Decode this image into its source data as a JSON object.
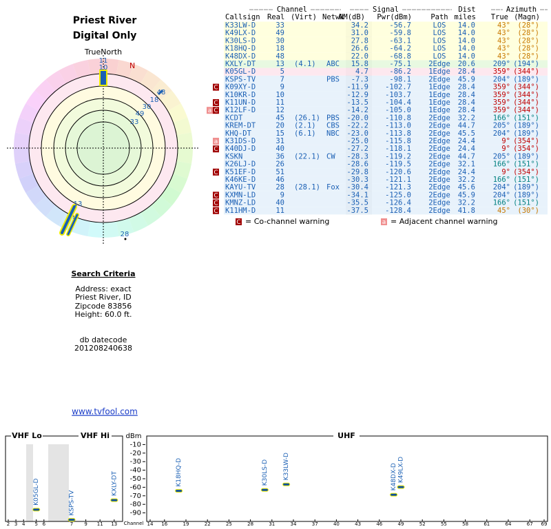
{
  "header": {
    "title": "Priest River",
    "subtitle": "Digital Only"
  },
  "polar": {
    "north": "TrueNorth",
    "n": "N"
  },
  "criteria": {
    "heading": "Search Criteria",
    "lines": [
      "Address: exact",
      "Priest River, ID",
      "Zipcode 83856",
      "Height: 60.0 ft."
    ],
    "db_label": "db datecode",
    "db_code": "201208240638",
    "link": "www.tvfool.com"
  },
  "table": {
    "groups": [
      "Channel",
      "Signal",
      "Dist",
      "Azimuth"
    ],
    "columns": [
      "Callsign",
      "Real",
      "(Virt)",
      "Netwk",
      "NM(dB)",
      "Pwr(dBm)",
      "Path",
      "miles",
      "True",
      "(Magn)"
    ],
    "rows": [
      {
        "callsign": "K33LW-D",
        "real": "33",
        "nm": "34.2",
        "pwr": "-56.7",
        "path": "LOS",
        "dist": "14.0",
        "true_az": "43°",
        "magn": "(28°)",
        "bg": "#ffffd8",
        "az_color": "#c87800"
      },
      {
        "callsign": "K49LX-D",
        "real": "49",
        "nm": "31.0",
        "pwr": "-59.8",
        "path": "LOS",
        "dist": "14.0",
        "true_az": "43°",
        "magn": "(28°)",
        "bg": "#ffffd8",
        "az_color": "#c87800"
      },
      {
        "callsign": "K30LS-D",
        "real": "30",
        "nm": "27.8",
        "pwr": "-63.1",
        "path": "LOS",
        "dist": "14.0",
        "true_az": "43°",
        "magn": "(28°)",
        "bg": "#ffffd8",
        "az_color": "#c87800"
      },
      {
        "callsign": "K18HQ-D",
        "real": "18",
        "nm": "26.6",
        "pwr": "-64.2",
        "path": "LOS",
        "dist": "14.0",
        "true_az": "43°",
        "magn": "(28°)",
        "bg": "#ffffd8",
        "az_color": "#c87800"
      },
      {
        "callsign": "K48DX-D",
        "real": "48",
        "nm": "22.0",
        "pwr": "-68.8",
        "path": "LOS",
        "dist": "14.0",
        "true_az": "43°",
        "magn": "(28°)",
        "bg": "#ffffd8",
        "az_color": "#c87800"
      },
      {
        "callsign": "KXLY-DT",
        "real": "13",
        "virt": "(4.1)",
        "netwk": "ABC",
        "nm": "15.8",
        "pwr": "-75.1",
        "path": "2Edge",
        "dist": "20.6",
        "true_az": "209°",
        "magn": "(194°)",
        "bg": "#e4f8dc",
        "az_color": "#1a5fb4"
      },
      {
        "callsign": "K05GL-D",
        "real": "5",
        "nm": "4.7",
        "pwr": "-86.2",
        "path": "1Edge",
        "dist": "28.4",
        "true_az": "359°",
        "magn": "(344°)",
        "bg": "#fde4ec",
        "az_color": "#c00000"
      },
      {
        "callsign": "KSPS-TV",
        "real": "7",
        "netwk": "PBS",
        "nm": "-7.3",
        "pwr": "-98.1",
        "path": "2Edge",
        "dist": "45.9",
        "true_az": "204°",
        "magn": "(189°)",
        "bg": "#e4f0fa",
        "az_color": "#1a5fb4"
      },
      {
        "callsign": "K09XY-D",
        "real": "9",
        "nm": "-11.9",
        "pwr": "-102.7",
        "path": "1Edge",
        "dist": "28.4",
        "true_az": "359°",
        "magn": "(344°)",
        "bg": "#e4f0fa",
        "az_color": "#c00000",
        "warn": [
          "C"
        ]
      },
      {
        "callsign": "K10KR-D",
        "real": "10",
        "nm": "-12.9",
        "pwr": "-103.7",
        "path": "1Edge",
        "dist": "28.4",
        "true_az": "359°",
        "magn": "(344°)",
        "bg": "#e4f0fa",
        "az_color": "#c00000"
      },
      {
        "callsign": "K11UN-D",
        "real": "11",
        "nm": "-13.5",
        "pwr": "-104.4",
        "path": "1Edge",
        "dist": "28.4",
        "true_az": "359°",
        "magn": "(344°)",
        "bg": "#e4f0fa",
        "az_color": "#c00000",
        "warn": [
          "C"
        ]
      },
      {
        "callsign": "K12LF-D",
        "real": "12",
        "nm": "-14.2",
        "pwr": "-105.0",
        "path": "1Edge",
        "dist": "28.4",
        "true_az": "359°",
        "magn": "(344°)",
        "bg": "#e4f0fa",
        "az_color": "#c00000",
        "warn": [
          "a",
          "C"
        ]
      },
      {
        "callsign": "KCDT",
        "real": "45",
        "virt": "(26.1)",
        "netwk": "PBS",
        "nm": "-20.0",
        "pwr": "-110.8",
        "path": "2Edge",
        "dist": "32.2",
        "true_az": "166°",
        "magn": "(151°)",
        "bg": "#e4f0fa",
        "az_color": "#008080"
      },
      {
        "callsign": "KREM-DT",
        "real": "20",
        "virt": "(2.1)",
        "netwk": "CBS",
        "nm": "-22.2",
        "pwr": "-113.0",
        "path": "2Edge",
        "dist": "44.7",
        "true_az": "205°",
        "magn": "(189°)",
        "bg": "#e4f0fa",
        "az_color": "#1a5fb4"
      },
      {
        "callsign": "KHQ-DT",
        "real": "15",
        "virt": "(6.1)",
        "netwk": "NBC",
        "nm": "-23.0",
        "pwr": "-113.8",
        "path": "2Edge",
        "dist": "45.5",
        "true_az": "204°",
        "magn": "(189°)",
        "bg": "#e4f0fa",
        "az_color": "#1a5fb4"
      },
      {
        "callsign": "K31DS-D",
        "real": "31",
        "nm": "-25.0",
        "pwr": "-115.8",
        "path": "2Edge",
        "dist": "24.4",
        "true_az": "9°",
        "magn": "(354°)",
        "bg": "#e4f0fa",
        "az_color": "#c00000",
        "warn": [
          "a"
        ]
      },
      {
        "callsign": "K40DJ-D",
        "real": "40",
        "nm": "-27.2",
        "pwr": "-118.1",
        "path": "2Edge",
        "dist": "24.4",
        "true_az": "9°",
        "magn": "(354°)",
        "bg": "#e4f0fa",
        "az_color": "#c00000",
        "warn": [
          "C"
        ]
      },
      {
        "callsign": "KSKN",
        "real": "36",
        "virt": "(22.1)",
        "netwk": "CW",
        "nm": "-28.3",
        "pwr": "-119.2",
        "path": "2Edge",
        "dist": "44.7",
        "true_az": "205°",
        "magn": "(189°)",
        "bg": "#e4f0fa",
        "az_color": "#1a5fb4"
      },
      {
        "callsign": "K26LJ-D",
        "real": "26",
        "nm": "-28.6",
        "pwr": "-119.5",
        "path": "2Edge",
        "dist": "32.1",
        "true_az": "166°",
        "magn": "(151°)",
        "bg": "#e4f0fa",
        "az_color": "#008080"
      },
      {
        "callsign": "K51EF-D",
        "real": "51",
        "nm": "-29.8",
        "pwr": "-120.6",
        "path": "2Edge",
        "dist": "24.4",
        "true_az": "9°",
        "magn": "(354°)",
        "bg": "#e4f0fa",
        "az_color": "#c00000",
        "warn": [
          "C"
        ]
      },
      {
        "callsign": "K46KE-D",
        "real": "46",
        "nm": "-30.3",
        "pwr": "-121.1",
        "path": "2Edge",
        "dist": "32.2",
        "true_az": "166°",
        "magn": "(151°)",
        "bg": "#e4f0fa",
        "az_color": "#008080"
      },
      {
        "callsign": "KAYU-TV",
        "real": "28",
        "virt": "(28.1)",
        "netwk": "Fox",
        "nm": "-30.4",
        "pwr": "-121.3",
        "path": "2Edge",
        "dist": "45.6",
        "true_az": "204°",
        "magn": "(189°)",
        "bg": "#e4f0fa",
        "az_color": "#1a5fb4"
      },
      {
        "callsign": "KXMN-LD",
        "real": "9",
        "nm": "-34.1",
        "pwr": "-125.0",
        "path": "2Edge",
        "dist": "45.9",
        "true_az": "204°",
        "magn": "(189°)",
        "bg": "#e4f0fa",
        "az_color": "#1a5fb4",
        "warn": [
          "C"
        ]
      },
      {
        "callsign": "KMNZ-LD",
        "real": "40",
        "nm": "-35.5",
        "pwr": "-126.4",
        "path": "2Edge",
        "dist": "32.2",
        "true_az": "166°",
        "magn": "(151°)",
        "bg": "#e4f0fa",
        "az_color": "#008080",
        "warn": [
          "C"
        ]
      },
      {
        "callsign": "K11HM-D",
        "real": "11",
        "nm": "-37.5",
        "pwr": "-128.4",
        "path": "2Edge",
        "dist": "41.8",
        "true_az": "45°",
        "magn": "(30°)",
        "bg": "#e4f0fa",
        "az_color": "#c87800",
        "warn": [
          "C"
        ]
      }
    ]
  },
  "legend": [
    {
      "mark": "C",
      "text": "= Co-channel warning"
    },
    {
      "mark": "a",
      "text": "= Adjacent channel warning"
    }
  ],
  "spectrum": {
    "bands": [
      "VHF Lo",
      "VHF Hi",
      "UHF"
    ],
    "y_unit": "dBm",
    "x_unit": "Channel",
    "ylim": [
      -100,
      0
    ],
    "yticks": [
      -10,
      -20,
      -30,
      -40,
      -50,
      -60,
      -70,
      -80,
      -90
    ],
    "vhf_lo_ticks": [
      2,
      3,
      4,
      5,
      6
    ],
    "vhf_hi_ticks": [
      7,
      9,
      11,
      13
    ],
    "uhf_ticks": [
      14,
      16,
      19,
      22,
      25,
      28,
      31,
      34,
      37,
      40,
      43,
      46,
      49,
      52,
      55,
      58,
      61,
      64,
      67,
      69
    ],
    "stations": [
      {
        "name": "K05GL-D",
        "channel": 5,
        "dbm": -86.2
      },
      {
        "name": "KSPS-TV",
        "channel": 7,
        "dbm": -98.1
      },
      {
        "name": "KXLY-DT",
        "channel": 13,
        "dbm": -75.1
      },
      {
        "name": "K18HQ-D",
        "channel": 18,
        "dbm": -64.2
      },
      {
        "name": "K30LS-D",
        "channel": 30,
        "dbm": -63.1
      },
      {
        "name": "K33LW-D",
        "channel": 33,
        "dbm": -56.7
      },
      {
        "name": "K48DX-D",
        "channel": 48,
        "dbm": -68.8
      },
      {
        "name": "K49LX-D",
        "channel": 49,
        "dbm": -59.8
      }
    ]
  }
}
